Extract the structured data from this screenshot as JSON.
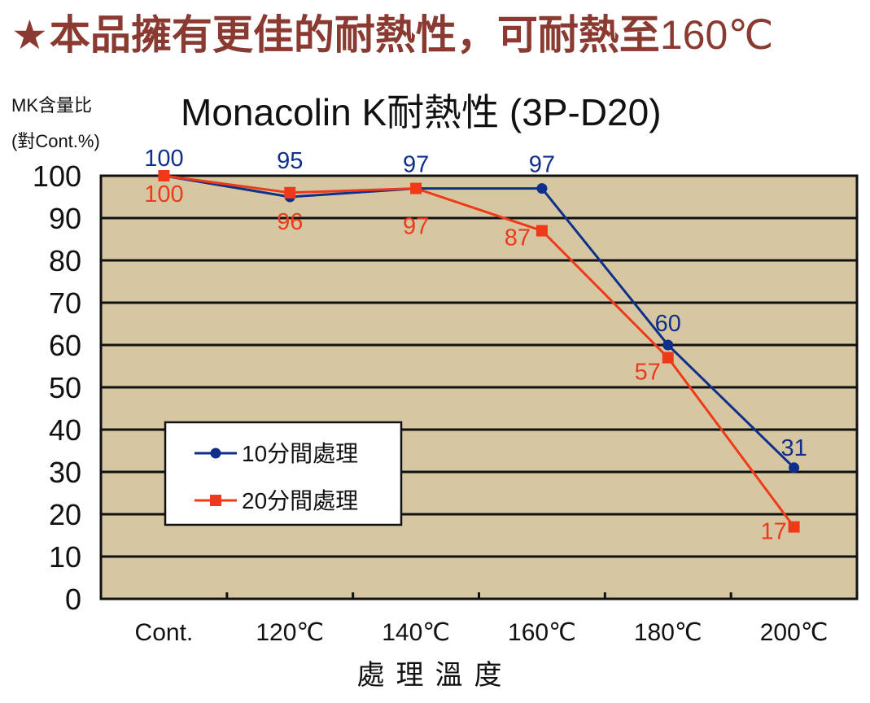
{
  "headline": {
    "star": "★",
    "text": "本品擁有更佳的耐熱性，可耐熱至",
    "tail": "160℃"
  },
  "colors": {
    "headline": "#8a3a30",
    "plot_bg": "#d6c7a2",
    "series_10": "#0f2f8a",
    "series_20": "#ef3a1a"
  },
  "chart_data": {
    "type": "line",
    "title": "Monacolin K耐熱性 (3P-D20)",
    "ylabel": [
      "MK含量比",
      "(對Cont.%)"
    ],
    "xlabel": "處理溫度",
    "categories": [
      "Cont.",
      "120℃",
      "140℃",
      "160℃",
      "180℃",
      "200℃"
    ],
    "ylim": [
      0,
      100
    ],
    "yticks": [
      0,
      10,
      20,
      30,
      40,
      50,
      60,
      70,
      80,
      90,
      100
    ],
    "grid": true,
    "legend_position": "left-middle",
    "series": [
      {
        "name": "10分間處理",
        "marker": "circle",
        "color": "#0f2f8a",
        "values": [
          100,
          95,
          97,
          97,
          60,
          31
        ],
        "labels": [
          "100",
          "95",
          "97",
          "97",
          "60",
          "31"
        ]
      },
      {
        "name": "20分間處理",
        "marker": "square",
        "color": "#ef3a1a",
        "values": [
          100,
          96,
          97,
          87,
          57,
          17
        ],
        "labels": [
          "100",
          "96",
          "97",
          "87",
          "57",
          "17"
        ]
      }
    ]
  }
}
